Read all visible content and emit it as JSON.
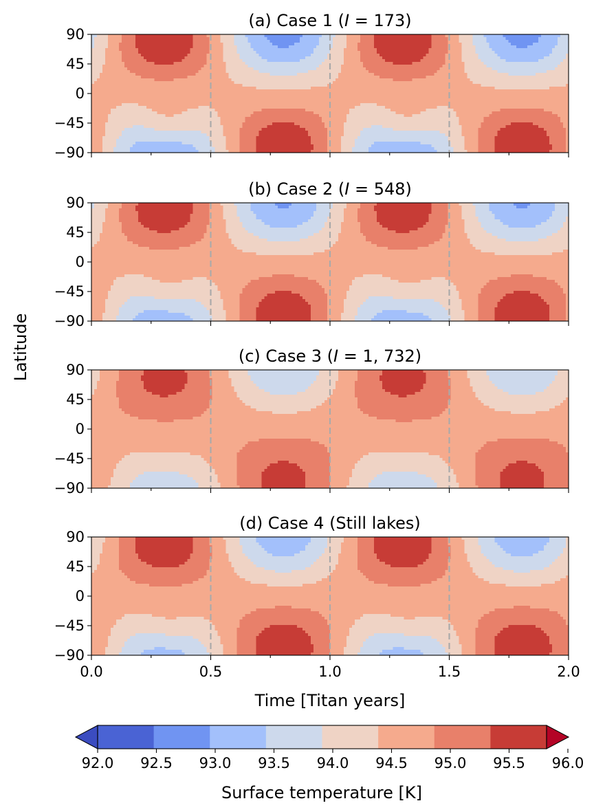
{
  "chart_data": {
    "type": "heatmap",
    "panels": [
      {
        "title": "(a) Case 1 (I = 173)",
        "title_prefix": "(a) Case 1 (",
        "title_symbol": "I",
        "title_suffix": " = 173)"
      },
      {
        "title": "(b) Case 2 (I = 548)",
        "title_prefix": "(b) Case 2 (",
        "title_symbol": "I",
        "title_suffix": " = 548)"
      },
      {
        "title": "(c) Case 3 (I = 1, 732)",
        "title_prefix": "(c) Case 3 (",
        "title_symbol": "I",
        "title_suffix": " = 1, 732)"
      },
      {
        "title": "(d) Case 4 (Still lakes)",
        "title_prefix": "(d) Case 4 (Still lakes)",
        "title_symbol": "",
        "title_suffix": ""
      }
    ],
    "xlabel": "Time [Titan years]",
    "ylabel": "Latitude",
    "xlim": [
      0.0,
      2.0
    ],
    "ylim": [
      -90,
      90
    ],
    "x_ticks": [
      "0.0",
      "0.5",
      "1.0",
      "1.5",
      "2.0"
    ],
    "y_ticks": [
      "90",
      "45",
      "0",
      "−45",
      "−90"
    ],
    "vlines": [
      0.5,
      1.0,
      1.5
    ],
    "colorbar": {
      "label": "Surface temperature [K]",
      "levels": [
        92.0,
        92.5,
        93.0,
        93.5,
        94.0,
        94.5,
        95.0,
        95.5,
        96.0
      ],
      "tick_labels": [
        "92.0",
        "92.5",
        "93.0",
        "93.5",
        "94.0",
        "94.5",
        "95.0",
        "95.5",
        "96.0"
      ],
      "colors": [
        "#4a63d4",
        "#7094f2",
        "#a3c0fb",
        "#cdd9ec",
        "#efd3c5",
        "#f5aa8d",
        "#e8806a",
        "#c73c36"
      ],
      "under_color": "#3b4cc0",
      "over_color": "#b40426",
      "extend": "both"
    }
  }
}
